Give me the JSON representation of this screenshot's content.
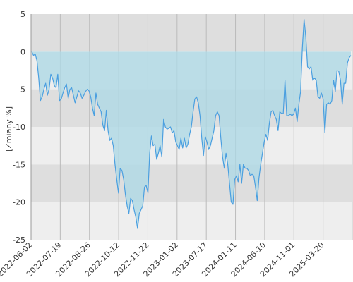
{
  "chart_data": {
    "type": "area",
    "ylabel": "[Zmiany %]",
    "ylim": [
      -25,
      5
    ],
    "y_ticks": [
      5,
      0,
      -5,
      -10,
      -15,
      -20,
      -25
    ],
    "x_tick_labels": [
      "2022-06-02",
      "2022-07-19",
      "2022-08-26",
      "2022-10-12",
      "2022-11-22",
      "2023-01-02",
      "2023-07-17",
      "2024-01-11",
      "2024-06-10",
      "2024-11-01",
      "2025-03-20"
    ],
    "band_colors": [
      "#dedede",
      "#eeeeee"
    ],
    "colors": {
      "area_fill": "#add8e6",
      "line": "#4a9fe0",
      "grid": "#bbbbbb"
    },
    "series": [
      {
        "values": [
          0,
          -0.5,
          -0.3,
          -1.2,
          -3.5,
          -6.5,
          -6.0,
          -5.0,
          -4.2,
          -5.8,
          -5.0,
          -3.0,
          -3.5,
          -4.5,
          -4.8,
          -3.0,
          -6.5,
          -6.3,
          -5.5,
          -4.8,
          -4.3,
          -6.2,
          -5.0,
          -4.8,
          -5.8,
          -6.8,
          -6.0,
          -5.2,
          -5.5,
          -6.2,
          -5.8,
          -5.3,
          -5.0,
          -5.2,
          -6.0,
          -7.5,
          -8.5,
          -5.5,
          -7.0,
          -7.5,
          -8.0,
          -9.8,
          -10.5,
          -7.8,
          -10.5,
          -11.8,
          -11.5,
          -12.5,
          -15.0,
          -17.0,
          -18.8,
          -15.5,
          -15.8,
          -17.0,
          -19.0,
          -20.5,
          -21.5,
          -19.5,
          -19.8,
          -21.0,
          -22.0,
          -23.5,
          -21.5,
          -21.0,
          -20.5,
          -18.0,
          -17.8,
          -18.8,
          -13.5,
          -11.2,
          -12.5,
          -12.3,
          -14.3,
          -13.5,
          -12.5,
          -14.0,
          -9.0,
          -10.0,
          -10.3,
          -10.2,
          -10.0,
          -10.8,
          -10.5,
          -12.0,
          -12.5,
          -13.0,
          -11.5,
          -12.8,
          -11.5,
          -12.8,
          -12.3,
          -11.0,
          -10.0,
          -8.0,
          -6.3,
          -6.0,
          -6.8,
          -8.5,
          -11.5,
          -13.8,
          -11.3,
          -12.0,
          -13.0,
          -12.5,
          -11.5,
          -10.5,
          -8.5,
          -8.0,
          -8.5,
          -11.5,
          -14.0,
          -15.5,
          -13.5,
          -15.0,
          -17.5,
          -20.0,
          -20.3,
          -17.0,
          -16.5,
          -17.3,
          -15.0,
          -17.5,
          -15.0,
          -15.5,
          -15.5,
          -15.8,
          -16.5,
          -16.3,
          -16.5,
          -18.0,
          -19.8,
          -16.8,
          -15.0,
          -13.5,
          -12.0,
          -11.0,
          -11.8,
          -9.5,
          -8.0,
          -7.8,
          -8.5,
          -9.0,
          -10.5,
          -8.0,
          -8.2,
          -8.2,
          -3.8,
          -8.5,
          -8.5,
          -8.3,
          -8.5,
          -8.3,
          -7.5,
          -9.3,
          -7.0,
          -5.3,
          0.5,
          4.3,
          2.0,
          -2.0,
          -2.3,
          -2.0,
          -3.8,
          -3.5,
          -3.8,
          -6.0,
          -6.2,
          -5.5,
          -6.3,
          -10.8,
          -7.0,
          -6.8,
          -7.0,
          -6.5,
          -3.8,
          -5.3,
          -2.5,
          -2.6,
          -3.8,
          -7.0,
          -4.2,
          -4.2,
          -1.5,
          -0.8,
          -0.5
        ]
      }
    ]
  }
}
